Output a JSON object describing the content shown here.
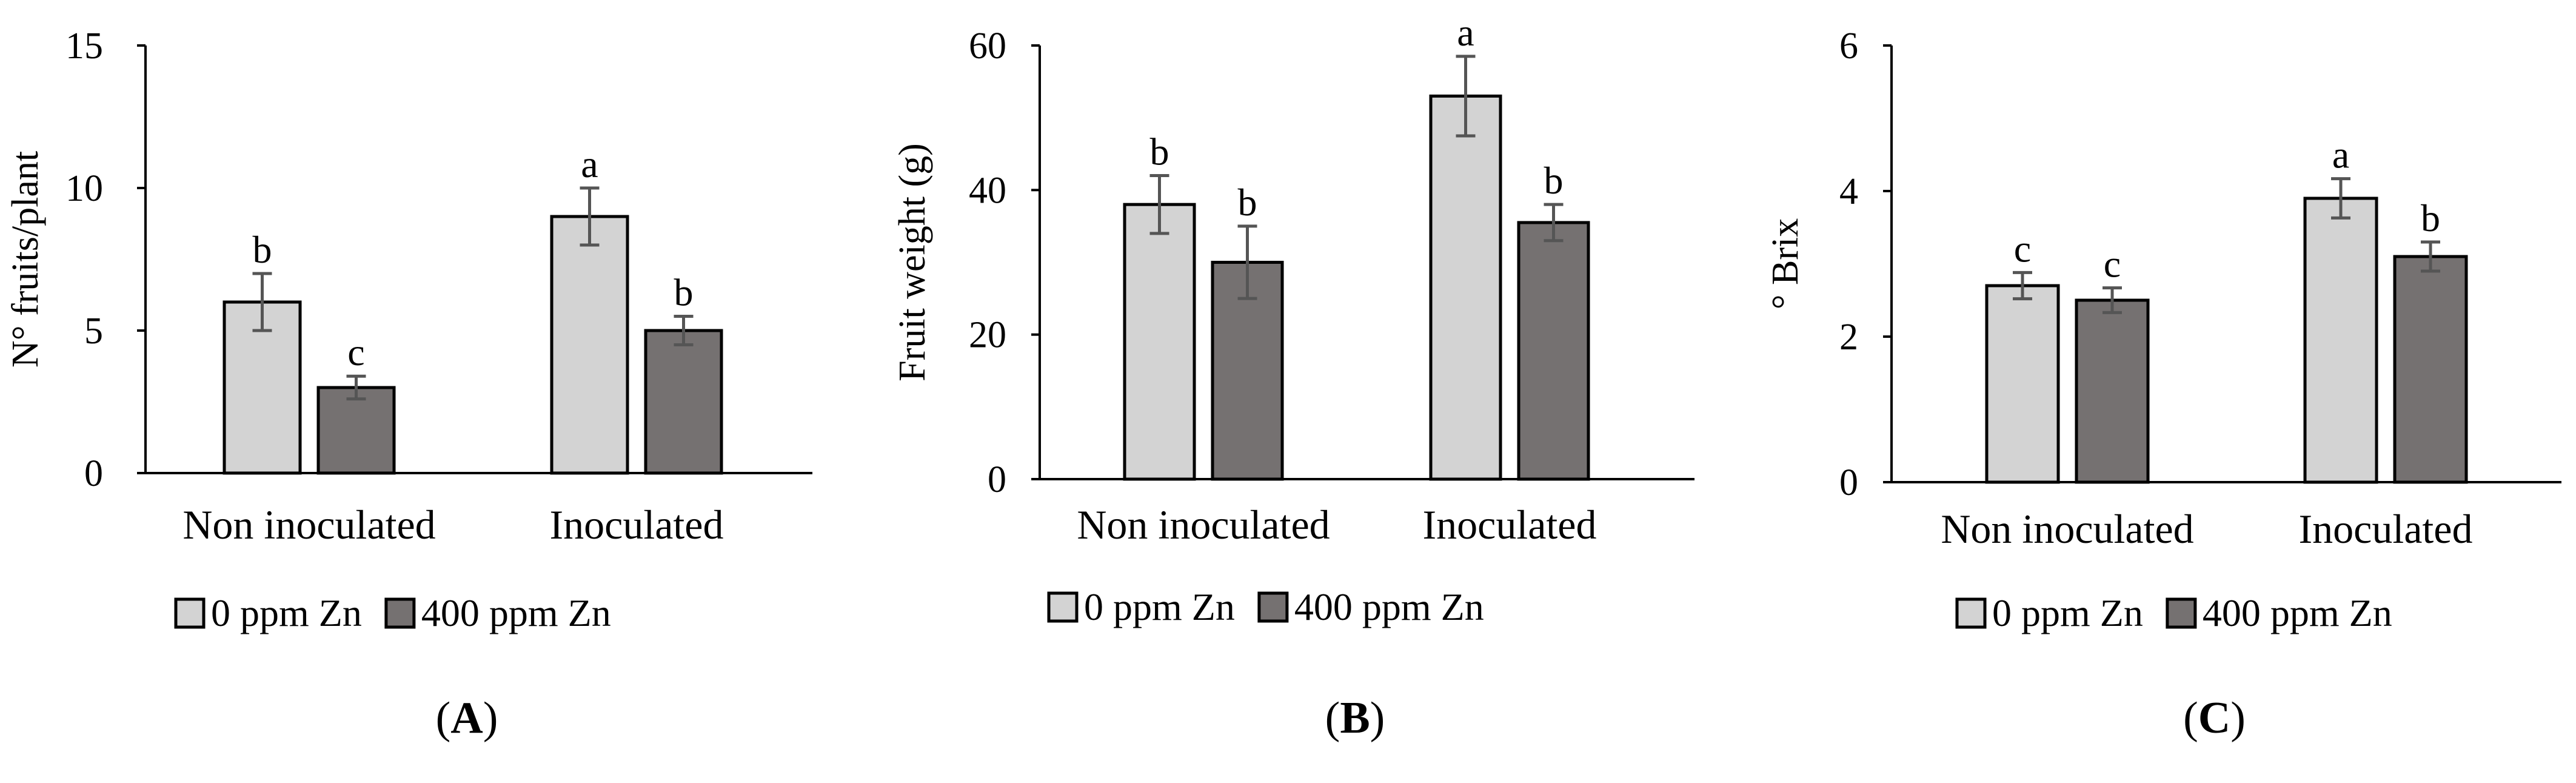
{
  "chart_data": [
    {
      "type": "bar",
      "panel_label": "A",
      "ylabel": "N° fruits/plant",
      "ylim": [
        0,
        15
      ],
      "yticks": [
        0,
        5,
        10,
        15
      ],
      "categories": [
        "Non inoculated",
        "Inoculated"
      ],
      "series": [
        {
          "name": "0 ppm Zn",
          "color": "#d3d3d3",
          "values": [
            6,
            9
          ],
          "errors": [
            1.0,
            1.0
          ],
          "letters": [
            "b",
            "a"
          ]
        },
        {
          "name": "400 ppm Zn",
          "color": "#757171",
          "values": [
            3,
            5
          ],
          "errors": [
            0.4,
            0.5
          ],
          "letters": [
            "c",
            "b"
          ]
        }
      ],
      "legend": "bottom"
    },
    {
      "type": "bar",
      "panel_label": "B",
      "ylabel": "Fruit weight (g)",
      "ylim": [
        0,
        60
      ],
      "yticks": [
        0,
        20,
        40,
        60
      ],
      "categories": [
        "Non inoculated",
        "Inoculated"
      ],
      "series": [
        {
          "name": "0 ppm Zn",
          "color": "#d3d3d3",
          "values": [
            38,
            53
          ],
          "errors": [
            4,
            5.5
          ],
          "letters": [
            "b",
            "a"
          ]
        },
        {
          "name": "400 ppm Zn",
          "color": "#757171",
          "values": [
            30,
            35.5
          ],
          "errors": [
            5,
            2.5
          ],
          "letters": [
            "b",
            "b"
          ]
        }
      ],
      "legend": "bottom"
    },
    {
      "type": "bar",
      "panel_label": "C",
      "ylabel": "° Brix",
      "ylim": [
        0,
        6
      ],
      "yticks": [
        0,
        2,
        4,
        6
      ],
      "categories": [
        "Non inoculated",
        "Inoculated"
      ],
      "series": [
        {
          "name": "0 ppm Zn",
          "color": "#d3d3d3",
          "values": [
            2.7,
            3.9
          ],
          "errors": [
            0.18,
            0.27
          ],
          "letters": [
            "c",
            "a"
          ]
        },
        {
          "name": "400 ppm Zn",
          "color": "#757171",
          "values": [
            2.5,
            3.1
          ],
          "errors": [
            0.17,
            0.2
          ],
          "letters": [
            "c",
            "b"
          ]
        }
      ],
      "legend": "bottom"
    }
  ]
}
